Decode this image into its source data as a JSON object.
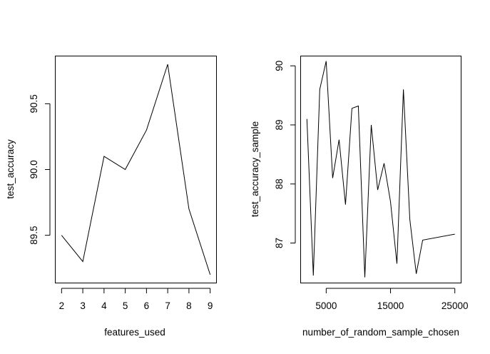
{
  "chart_data": [
    {
      "type": "line",
      "title": "",
      "xlabel": "features_used",
      "ylabel": "test_accuracy",
      "x": [
        2,
        3,
        4,
        5,
        6,
        7,
        8,
        9
      ],
      "values": [
        89.5,
        89.3,
        90.1,
        90.0,
        90.3,
        90.8,
        89.7,
        89.2
      ],
      "xlim": [
        1.72,
        9.28
      ],
      "ylim": [
        89.14,
        90.86
      ],
      "xticks": [
        2,
        3,
        4,
        5,
        6,
        7,
        8,
        9
      ],
      "xtick_labels": [
        "2",
        "3",
        "4",
        "5",
        "6",
        "7",
        "8",
        "9"
      ],
      "yticks": [
        89.5,
        90.0,
        90.5
      ],
      "ytick_labels": [
        "89.5",
        "90.0",
        "90.5"
      ],
      "grid": false
    },
    {
      "type": "line",
      "title": "",
      "xlabel": "number_of_random_sample_chosen",
      "ylabel": "test_accuracy_sample",
      "x": [
        2000,
        3000,
        4000,
        5000,
        6000,
        7000,
        8000,
        9000,
        10000,
        11000,
        12000,
        13000,
        14000,
        15000,
        16000,
        17000,
        18000,
        19000,
        20000,
        25000
      ],
      "values": [
        89.1,
        86.45,
        89.6,
        90.08,
        88.1,
        88.75,
        87.65,
        89.28,
        89.32,
        86.42,
        89.0,
        87.9,
        88.35,
        87.7,
        86.65,
        89.6,
        87.4,
        86.48,
        87.05,
        87.15
      ],
      "xlim": [
        1080,
        25920
      ],
      "ylim": [
        86.33,
        90.16
      ],
      "xticks": [
        5000,
        15000,
        25000
      ],
      "xtick_labels": [
        "5000",
        "15000",
        "25000"
      ],
      "yticks": [
        87,
        88,
        89,
        90
      ],
      "ytick_labels": [
        "87",
        "88",
        "89",
        "90"
      ],
      "grid": false
    }
  ]
}
